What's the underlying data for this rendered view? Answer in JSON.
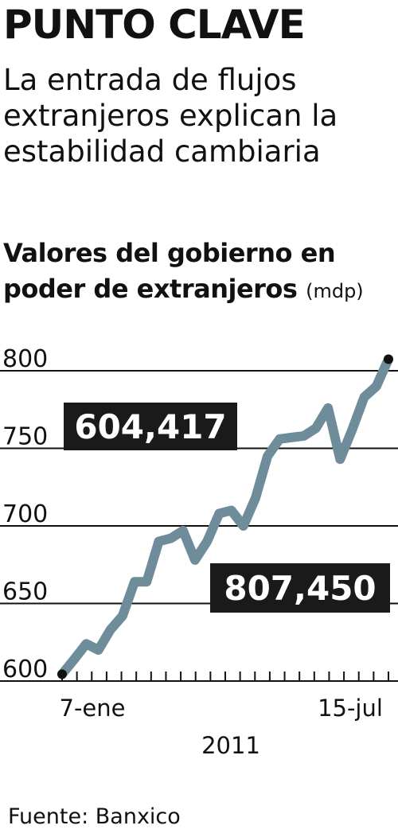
{
  "header": {
    "title": "PUNTO CLAVE",
    "subtitle": "La entrada de flujos extranjeros explican la estabilidad cambiaria"
  },
  "chart_data": {
    "type": "line",
    "title": "Valores del gobierno en poder de extranjeros",
    "unit": "(mdp)",
    "ylim": [
      600,
      800
    ],
    "yticks": [
      "600",
      "650",
      "700",
      "750",
      "800"
    ],
    "xlabels": [
      "7-ene",
      "15-jul"
    ],
    "year_label": "2011",
    "grid": true,
    "series_color": "#6e8c99",
    "series": [
      {
        "values": [
          604.417,
          614,
          624,
          620,
          633,
          642,
          664,
          664,
          690,
          692,
          697,
          678,
          690,
          708,
          710,
          700,
          718,
          745,
          756,
          757,
          758,
          763,
          776,
          743,
          762,
          783,
          790,
          807.45
        ]
      }
    ],
    "annotations": [
      {
        "label": "604,417",
        "point": "start"
      },
      {
        "label": "807,450",
        "point": "end"
      }
    ]
  },
  "footer": {
    "source": "Fuente: Banxico"
  }
}
